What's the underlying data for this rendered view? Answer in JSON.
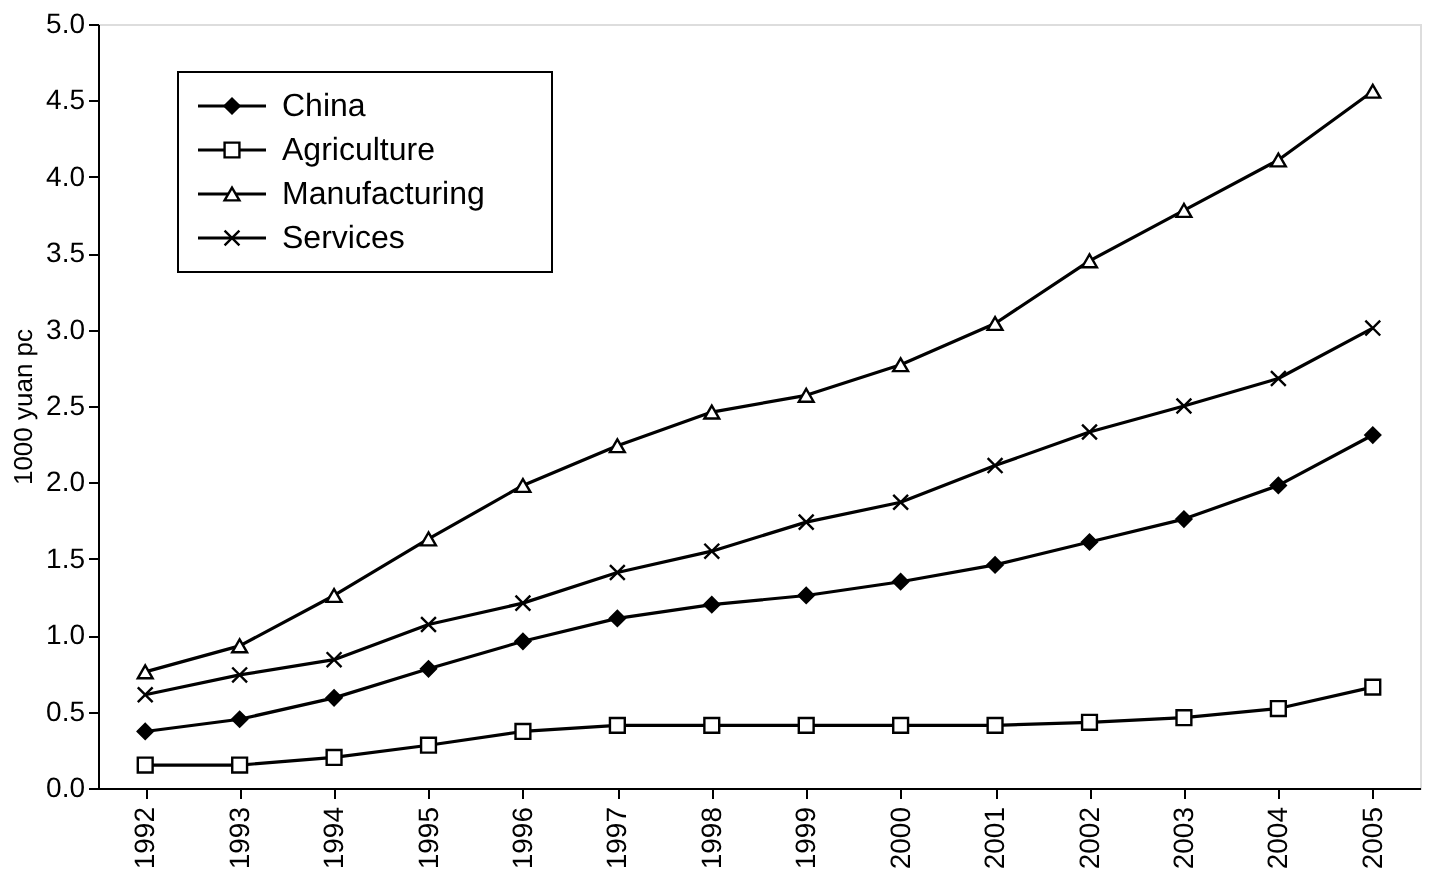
{
  "chart_data": {
    "type": "line",
    "ylabel": "1000 yuan pc",
    "categories": [
      "1992",
      "1993",
      "1994",
      "1995",
      "1996",
      "1997",
      "1998",
      "1999",
      "2000",
      "2001",
      "2002",
      "2003",
      "2004",
      "2005"
    ],
    "series": [
      {
        "name": "China",
        "color": "#000000",
        "marker": "diamond",
        "values": [
          0.37,
          0.45,
          0.59,
          0.78,
          0.96,
          1.11,
          1.2,
          1.26,
          1.35,
          1.46,
          1.61,
          1.76,
          1.98,
          2.31
        ]
      },
      {
        "name": "Agriculture",
        "color": "#000000",
        "marker": "square",
        "values": [
          0.15,
          0.15,
          0.2,
          0.28,
          0.37,
          0.41,
          0.41,
          0.41,
          0.41,
          0.41,
          0.43,
          0.46,
          0.52,
          0.66
        ]
      },
      {
        "name": "Manufacturing",
        "color": "#000000",
        "marker": "triangle",
        "values": [
          0.76,
          0.93,
          1.26,
          1.63,
          1.98,
          2.24,
          2.46,
          2.57,
          2.77,
          3.04,
          3.45,
          3.78,
          4.11,
          4.56
        ]
      },
      {
        "name": "Services",
        "color": "#000000",
        "marker": "cross",
        "values": [
          0.61,
          0.74,
          0.84,
          1.07,
          1.21,
          1.41,
          1.55,
          1.74,
          1.87,
          2.11,
          2.33,
          2.5,
          2.68,
          3.01
        ]
      }
    ],
    "ylim": [
      0,
      5
    ],
    "yticks": [
      {
        "value": 0,
        "label": "0.0"
      },
      {
        "value": 0.5,
        "label": "0.5"
      },
      {
        "value": 1,
        "label": "1.0"
      },
      {
        "value": 1.5,
        "label": "1.5"
      },
      {
        "value": 2,
        "label": "2.0"
      },
      {
        "value": 2.5,
        "label": "2.5"
      },
      {
        "value": 3,
        "label": "3.0"
      },
      {
        "value": 3.5,
        "label": "3.5"
      },
      {
        "value": 4,
        "label": "4.0"
      },
      {
        "value": 4.5,
        "label": "4.5"
      },
      {
        "value": 5,
        "label": "5.0"
      }
    ],
    "grid": false,
    "legend": "top left",
    "line_style": "solid"
  }
}
